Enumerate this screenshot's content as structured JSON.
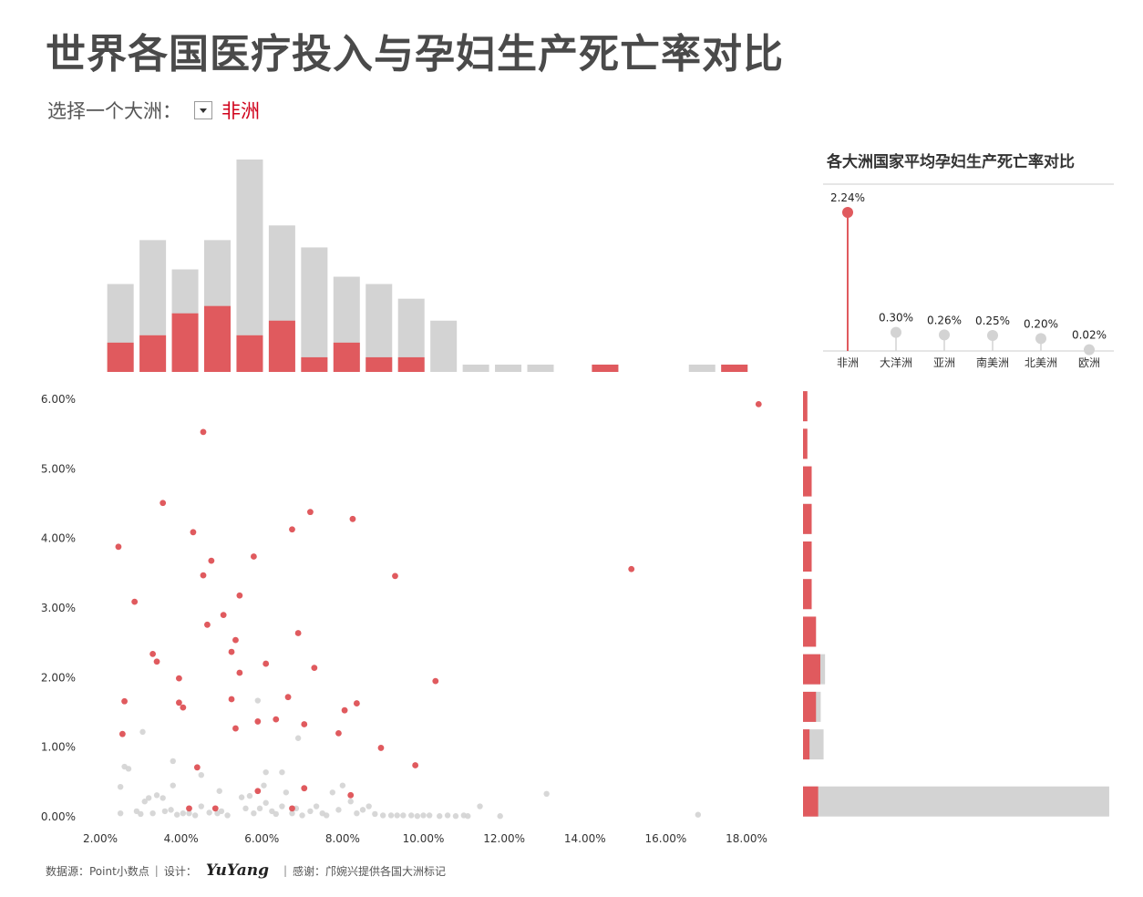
{
  "header": {
    "title": "世界各国医疗投入与孕妇生产死亡率对比",
    "selector_label": "选择一个大洲：",
    "selected_continent": "非洲"
  },
  "colors": {
    "highlight": "#e05a5e",
    "base": "#d3d3d3",
    "title": "#4a4a4a",
    "selected_text": "#d0021b"
  },
  "footer": {
    "source": "数据源：Point小数点",
    "design_label": "设计：",
    "designer": "YuYang",
    "thanks": "感谢：邝婉兴提供各国大洲标记"
  },
  "chart_data": [
    {
      "type": "bar",
      "role": "top-histogram",
      "title": "",
      "bin_centers": [
        2.5,
        3.3,
        4.1,
        4.9,
        5.7,
        6.5,
        7.3,
        8.1,
        8.9,
        9.7,
        10.5,
        11.3,
        12.1,
        12.9,
        13.7,
        14.5,
        15.3,
        16.1,
        16.9,
        17.7
      ],
      "series": [
        {
          "name": "",
          "values": [
            12,
            18,
            14,
            18,
            29,
            20,
            17,
            13,
            12,
            10,
            7,
            1,
            1,
            1,
            0,
            1,
            0,
            0,
            1,
            1
          ]
        },
        {
          "name": "",
          "values": [
            4,
            5,
            8,
            9,
            5,
            7,
            2,
            4,
            2,
            2,
            0,
            0,
            0,
            0,
            0,
            1,
            0,
            0,
            0,
            1
          ]
        }
      ]
    },
    {
      "type": "scatter",
      "role": "main-scatter",
      "xlabel": "",
      "ylabel": "",
      "xlim": [
        2.0,
        18.7
      ],
      "ylim": [
        0.0,
        6.0
      ],
      "xticks": [
        "2.00%",
        "4.00%",
        "6.00%",
        "8.00%",
        "10.00%",
        "12.00%",
        "14.00%",
        "16.00%",
        "18.00%"
      ],
      "yticks": [
        "0.00%",
        "1.00%",
        "2.00%",
        "3.00%",
        "4.00%",
        "5.00%",
        "6.00%"
      ],
      "series": [
        {
          "name": "",
          "points": [
            [
              18.3,
              5.93
            ],
            [
              4.55,
              5.53
            ],
            [
              3.55,
              4.51
            ],
            [
              7.2,
              4.38
            ],
            [
              8.25,
              4.28
            ],
            [
              6.75,
              4.13
            ],
            [
              4.3,
              4.09
            ],
            [
              2.45,
              3.88
            ],
            [
              5.8,
              3.74
            ],
            [
              4.75,
              3.68
            ],
            [
              4.55,
              3.47
            ],
            [
              9.3,
              3.46
            ],
            [
              15.15,
              3.56
            ],
            [
              5.45,
              3.18
            ],
            [
              2.85,
              3.09
            ],
            [
              5.05,
              2.9
            ],
            [
              4.65,
              2.76
            ],
            [
              6.9,
              2.64
            ],
            [
              5.35,
              2.54
            ],
            [
              5.25,
              2.37
            ],
            [
              3.3,
              2.34
            ],
            [
              3.4,
              2.23
            ],
            [
              6.1,
              2.2
            ],
            [
              7.3,
              2.14
            ],
            [
              5.45,
              2.07
            ],
            [
              3.95,
              1.99
            ],
            [
              10.3,
              1.95
            ],
            [
              6.65,
              1.72
            ],
            [
              2.6,
              1.66
            ],
            [
              5.25,
              1.69
            ],
            [
              3.95,
              1.64
            ],
            [
              8.35,
              1.63
            ],
            [
              4.05,
              1.57
            ],
            [
              8.05,
              1.53
            ],
            [
              5.9,
              1.37
            ],
            [
              6.35,
              1.4
            ],
            [
              7.05,
              1.33
            ],
            [
              5.35,
              1.27
            ],
            [
              2.55,
              1.19
            ],
            [
              7.9,
              1.2
            ],
            [
              8.95,
              0.99
            ],
            [
              9.8,
              0.74
            ],
            [
              4.4,
              0.71
            ],
            [
              7.05,
              0.41
            ],
            [
              8.2,
              0.31
            ],
            [
              5.9,
              0.37
            ],
            [
              4.2,
              0.12
            ],
            [
              4.85,
              0.12
            ],
            [
              6.75,
              0.12
            ]
          ]
        },
        {
          "name": "",
          "points": [
            [
              3.05,
              1.22
            ],
            [
              6.9,
              1.13
            ],
            [
              2.6,
              0.72
            ],
            [
              2.7,
              0.69
            ],
            [
              3.8,
              0.8
            ],
            [
              4.5,
              0.6
            ],
            [
              6.1,
              0.64
            ],
            [
              6.5,
              0.64
            ],
            [
              5.9,
              1.67
            ],
            [
              2.5,
              0.43
            ],
            [
              2.5,
              0.05
            ],
            [
              3.8,
              0.45
            ],
            [
              3.2,
              0.27
            ],
            [
              3.4,
              0.31
            ],
            [
              3.55,
              0.27
            ],
            [
              3.1,
              0.22
            ],
            [
              3.3,
              0.05
            ],
            [
              2.9,
              0.08
            ],
            [
              3.0,
              0.04
            ],
            [
              3.6,
              0.08
            ],
            [
              3.75,
              0.1
            ],
            [
              3.9,
              0.03
            ],
            [
              4.05,
              0.05
            ],
            [
              4.2,
              0.05
            ],
            [
              4.35,
              0.02
            ],
            [
              4.5,
              0.15
            ],
            [
              4.7,
              0.06
            ],
            [
              4.9,
              0.05
            ],
            [
              5.0,
              0.08
            ],
            [
              5.15,
              0.02
            ],
            [
              4.95,
              0.37
            ],
            [
              5.5,
              0.28
            ],
            [
              5.7,
              0.3
            ],
            [
              5.6,
              0.12
            ],
            [
              5.8,
              0.05
            ],
            [
              5.95,
              0.12
            ],
            [
              6.05,
              0.45
            ],
            [
              6.1,
              0.2
            ],
            [
              6.25,
              0.08
            ],
            [
              6.35,
              0.04
            ],
            [
              6.5,
              0.15
            ],
            [
              6.6,
              0.35
            ],
            [
              6.75,
              0.05
            ],
            [
              6.85,
              0.12
            ],
            [
              7.0,
              0.02
            ],
            [
              7.2,
              0.08
            ],
            [
              7.35,
              0.15
            ],
            [
              7.5,
              0.05
            ],
            [
              7.6,
              0.02
            ],
            [
              7.75,
              0.35
            ],
            [
              7.9,
              0.1
            ],
            [
              8.0,
              0.45
            ],
            [
              8.2,
              0.22
            ],
            [
              8.35,
              0.05
            ],
            [
              8.5,
              0.1
            ],
            [
              8.65,
              0.15
            ],
            [
              8.8,
              0.04
            ],
            [
              9.0,
              0.02
            ],
            [
              9.2,
              0.02
            ],
            [
              9.35,
              0.02
            ],
            [
              9.5,
              0.02
            ],
            [
              9.7,
              0.02
            ],
            [
              9.85,
              0.01
            ],
            [
              10.0,
              0.02
            ],
            [
              10.15,
              0.02
            ],
            [
              10.4,
              0.01
            ],
            [
              10.6,
              0.02
            ],
            [
              10.8,
              0.01
            ],
            [
              11.0,
              0.02
            ],
            [
              11.1,
              0.01
            ],
            [
              11.4,
              0.15
            ],
            [
              11.9,
              0.01
            ],
            [
              13.05,
              0.33
            ],
            [
              16.8,
              0.03
            ]
          ]
        }
      ]
    },
    {
      "type": "bar",
      "role": "right-histogram",
      "orientation": "horizontal",
      "bin_centers_y": [
        5.9,
        5.36,
        4.82,
        4.28,
        3.74,
        3.2,
        2.66,
        2.12,
        1.58,
        1.04,
        0.22
      ],
      "series": [
        {
          "name": "",
          "values": [
            1,
            1,
            2,
            2,
            2,
            2,
            3,
            4,
            3,
            1.5,
            3.5
          ]
        },
        {
          "name": "",
          "values": [
            0,
            0,
            0,
            0,
            0,
            0,
            0,
            1,
            1,
            3,
            62
          ]
        }
      ]
    },
    {
      "type": "scatter",
      "role": "lollipop",
      "title": "各大洲国家平均孕妇生产死亡率对比",
      "ylim": [
        0,
        2.4
      ],
      "categories": [
        "非洲",
        "大洋洲",
        "亚洲",
        "南美洲",
        "北美洲",
        "欧洲"
      ],
      "values": [
        2.24,
        0.3,
        0.26,
        0.25,
        0.2,
        0.02
      ],
      "labels": [
        "2.24%",
        "0.30%",
        "0.26%",
        "0.25%",
        "0.20%",
        "0.02%"
      ]
    }
  ]
}
